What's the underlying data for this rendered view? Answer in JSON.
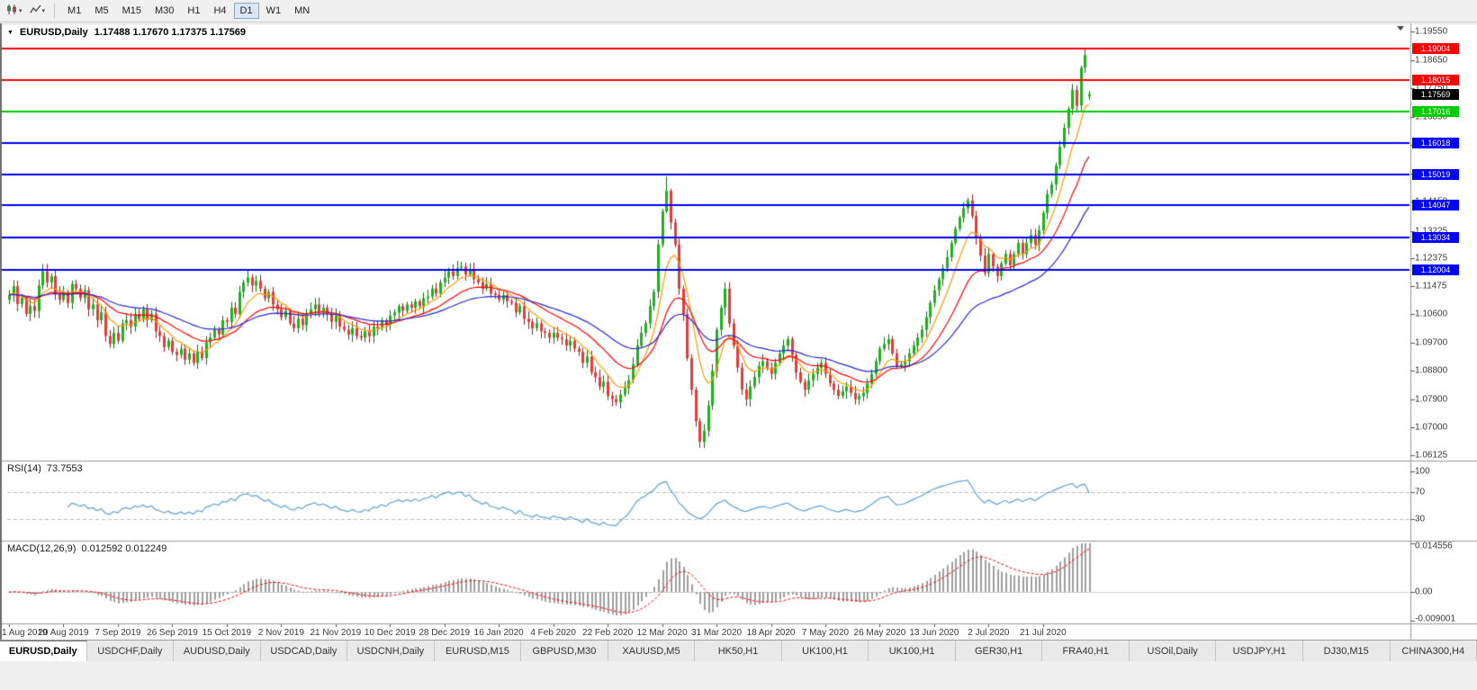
{
  "toolbar": {
    "timeframes": [
      "M1",
      "M5",
      "M15",
      "M30",
      "H1",
      "H4",
      "D1",
      "W1",
      "MN"
    ],
    "active_timeframe": "D1"
  },
  "main_chart": {
    "title": "EURUSD,Daily",
    "ohlc": "1.17488 1.17670 1.17375 1.17569"
  },
  "rsi_panel": {
    "title": "RSI(14)",
    "value": "73.7553",
    "scale_labels": [
      "100",
      "70",
      "30"
    ]
  },
  "macd_panel": {
    "title": "MACD(12,26,9)",
    "value": "0.012592 0.012249",
    "scale_labels": [
      "0.014556",
      "0.00",
      "-0.009001"
    ]
  },
  "price_scale": {
    "labels": [
      "1.19550",
      "1.18650",
      "1.17750",
      "1.16850",
      "1.15950",
      "1.15050",
      "1.14150",
      "1.13225",
      "1.12375",
      "1.11475",
      "1.10600",
      "1.09700",
      "1.08800",
      "1.07900",
      "1.07000",
      "1.06125"
    ]
  },
  "current_price_tag": {
    "label": "1.17569",
    "price": 1.17569,
    "color": "#000000"
  },
  "levels": [
    {
      "price": 1.19004,
      "label": "1.19004",
      "color": "#ff0000"
    },
    {
      "price": 1.18015,
      "label": "1.18015",
      "color": "#ff0000"
    },
    {
      "price": 1.17016,
      "label": "1.17016",
      "color": "#00cc00"
    },
    {
      "price": 1.16018,
      "label": "1.16018",
      "color": "#0000ff"
    },
    {
      "price": 1.15019,
      "label": "1.15019",
      "color": "#0000ff"
    },
    {
      "price": 1.14047,
      "label": "1.14047",
      "color": "#0000ff"
    },
    {
      "price": 1.13034,
      "label": "1.13034",
      "color": "#0000ff"
    },
    {
      "price": 1.12004,
      "label": "1.12004",
      "color": "#0000ff"
    }
  ],
  "date_axis": [
    "1 Aug 2019",
    "20 Aug 2019",
    "7 Sep 2019",
    "26 Sep 2019",
    "15 Oct 2019",
    "2 Nov 2019",
    "21 Nov 2019",
    "10 Dec 2019",
    "28 Dec 2019",
    "16 Jan 2020",
    "4 Feb 2020",
    "22 Feb 2020",
    "12 Mar 2020",
    "31 Mar 2020",
    "18 Apr 2020",
    "7 May 2020",
    "26 May 2020",
    "13 Jun 2020",
    "2 Jul 2020",
    "21 Jul 2020"
  ],
  "bottom_tabs": {
    "active_index": 0,
    "items": [
      "EURUSD,Daily",
      "USDCHF,Daily",
      "AUDUSD,Daily",
      "USDCAD,Daily",
      "USDCNH,Daily",
      "EURUSD,M15",
      "GBPUSD,M30",
      "XAUUSD,M5",
      "HK50,H1",
      "UK100,H1",
      "UK100,H1",
      "GER30,H1",
      "FRA40,H1",
      "USOil,Daily",
      "USDJPY,H1",
      "DJ30,M15",
      "CHINA300,H4"
    ],
    "note": "tab bar of open charts"
  },
  "chart_data": {
    "type": "candlestick",
    "symbol": "EURUSD",
    "timeframe": "Daily",
    "ohlc_display": [
      1.17488,
      1.1767,
      1.17375,
      1.17569
    ],
    "y_axis": {
      "min": 1.06125,
      "max": 1.1955
    },
    "x_range": [
      "1 Aug 2019",
      "31 Jul 2020"
    ],
    "closes": [
      1.112,
      1.1148,
      1.1092,
      1.111,
      1.106,
      1.1085,
      1.107,
      1.115,
      1.1195,
      1.116,
      1.118,
      1.1125,
      1.1105,
      1.113,
      1.1095,
      1.1155,
      1.114,
      1.111,
      1.1135,
      1.1075,
      1.109,
      1.104,
      1.1065,
      1.099,
      1.0965,
      1.1,
      1.0975,
      1.103,
      1.104,
      1.102,
      1.106,
      1.1045,
      1.1075,
      1.104,
      1.106,
      1.1005,
      1.099,
      1.0955,
      1.0975,
      1.094,
      1.093,
      1.095,
      1.0915,
      1.0935,
      1.0905,
      1.094,
      1.092,
      1.097,
      1.0985,
      1.101,
      1.0995,
      1.104,
      1.1035,
      1.108,
      1.106,
      1.113,
      1.116,
      1.1175,
      1.115,
      1.1165,
      1.114,
      1.111,
      1.113,
      1.109,
      1.1075,
      1.105,
      1.107,
      1.103,
      1.1015,
      1.1045,
      1.1025,
      1.106,
      1.1075,
      1.109,
      1.1065,
      1.108,
      1.106,
      1.1035,
      1.1055,
      1.102,
      1.101,
      1.0995,
      1.1015,
      1.099,
      1.0985,
      1.1005,
      1.099,
      1.102,
      1.1015,
      1.104,
      1.1025,
      1.1055,
      1.1065,
      1.1085,
      1.107,
      1.109,
      1.108,
      1.11,
      1.1085,
      1.111,
      1.1115,
      1.114,
      1.1125,
      1.116,
      1.1175,
      1.1195,
      1.118,
      1.1205,
      1.121,
      1.1185,
      1.12,
      1.117,
      1.116,
      1.114,
      1.1155,
      1.1125,
      1.112,
      1.1105,
      1.112,
      1.11,
      1.1095,
      1.1065,
      1.1085,
      1.1045,
      1.1035,
      1.1015,
      1.103,
      1.1005,
      1.1,
      1.0985,
      1.1,
      1.0985,
      1.098,
      1.096,
      1.0975,
      1.095,
      1.094,
      1.0905,
      1.0925,
      1.0875,
      1.086,
      1.083,
      1.0845,
      1.08,
      1.079,
      1.078,
      1.0805,
      1.0825,
      1.085,
      1.09,
      1.096,
      1.1,
      1.103,
      1.1085,
      1.113,
      1.128,
      1.1385,
      1.145,
      1.135,
      1.128,
      1.114,
      1.106,
      1.092,
      1.082,
      1.072,
      1.0655,
      1.069,
      1.077,
      1.088,
      1.101,
      1.108,
      1.114,
      1.103,
      1.096,
      1.089,
      1.082,
      1.079,
      1.083,
      1.086,
      1.0895,
      1.091,
      1.089,
      1.087,
      1.0905,
      1.0935,
      1.096,
      1.098,
      1.093,
      1.0875,
      1.0845,
      1.082,
      1.085,
      1.087,
      1.089,
      1.0905,
      1.087,
      1.084,
      1.082,
      1.08,
      1.0815,
      1.083,
      1.081,
      1.079,
      1.08,
      1.081,
      1.084,
      1.087,
      1.091,
      1.095,
      1.0965,
      1.098,
      1.0935,
      1.0895,
      1.09,
      1.091,
      1.0935,
      1.096,
      1.0985,
      1.101,
      1.105,
      1.1095,
      1.1135,
      1.117,
      1.1205,
      1.124,
      1.1285,
      1.133,
      1.1365,
      1.1395,
      1.142,
      1.137,
      1.13,
      1.1245,
      1.119,
      1.125,
      1.121,
      1.118,
      1.122,
      1.125,
      1.1215,
      1.125,
      1.1285,
      1.125,
      1.1285,
      1.131,
      1.128,
      1.1325,
      1.138,
      1.144,
      1.147,
      1.153,
      1.159,
      1.165,
      1.171,
      1.177,
      1.172,
      1.184,
      1.188,
      1.1757
    ],
    "candle_overrides": {
      "157": {
        "high": 1.1495
      },
      "165": {
        "low": 1.0636
      },
      "257": {
        "high": 1.19
      },
      "258": {
        "open": 1.17488,
        "high": 1.1767,
        "low": 1.17375,
        "close": 1.17569
      }
    },
    "style": {
      "bull": "#1db11d",
      "bull_border": "#0a6e0a",
      "bear": "#e23b3b",
      "bear_border": "#9a1c1c"
    },
    "moving_averages": [
      {
        "type": "EMA",
        "period": 8,
        "color": "#ff9900"
      },
      {
        "type": "EMA",
        "period": 20,
        "color": "#ff0000"
      },
      {
        "type": "EMA",
        "period": 40,
        "color": "#2828cf"
      }
    ],
    "indicators": [
      {
        "name": "RSI",
        "period": 14,
        "current": 73.7553,
        "levels": [
          70,
          30
        ],
        "color": "#58a0d8",
        "range": [
          0,
          100
        ]
      },
      {
        "name": "MACD",
        "fast": 12,
        "slow": 26,
        "signal": 9,
        "macd_current": 0.012592,
        "signal_current": 0.012249,
        "histogram_color": "#9e9e9e",
        "signal_color": "#ff0000",
        "scale": {
          "max": 0.014556,
          "min": -0.009001
        }
      }
    ]
  }
}
